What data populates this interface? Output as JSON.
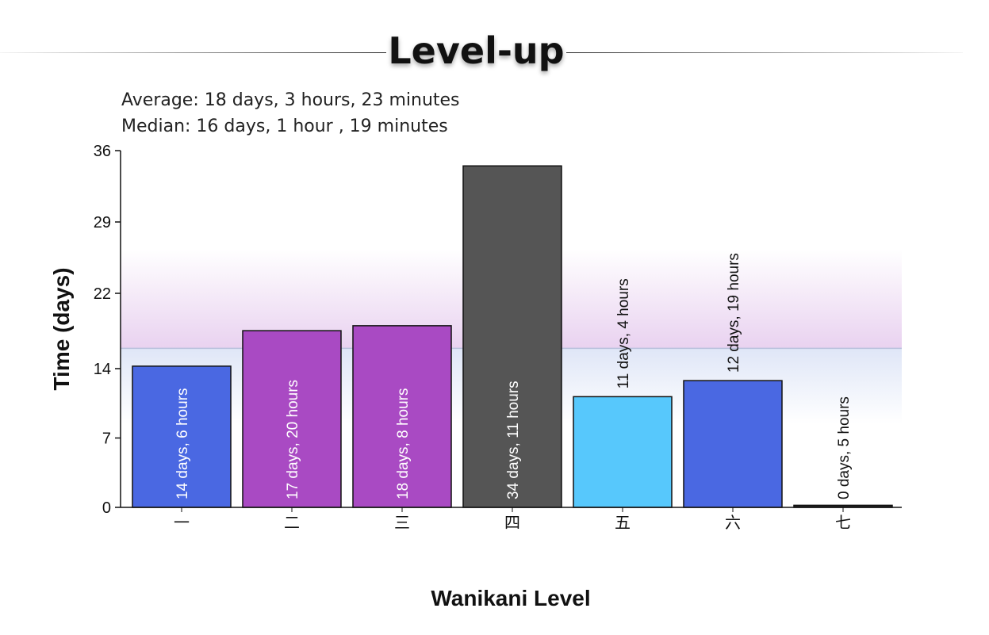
{
  "page": {
    "title": "Level-up",
    "stats": {
      "average": "Average: 18 days, 3 hours, 23 minutes",
      "median": "Median: 16 days, 1 hour , 19 minutes"
    }
  },
  "colors": {
    "blue": "#4a68e2",
    "purple": "#a94ac3",
    "dark": "#555555",
    "light_blue": "#57c8fc",
    "band_purple": "#e9d2f0",
    "band_blue": "#dfe6f7",
    "median_line": "#b8c0dc"
  },
  "chart_data": {
    "type": "bar",
    "xlabel": "Wanikani Level",
    "ylabel": "Time (days)",
    "ylim": [
      0,
      36
    ],
    "yticks": [
      "0",
      "7",
      "14",
      "22",
      "29",
      "36"
    ],
    "ytick_values": [
      0,
      7,
      14,
      21.6,
      28.8,
      36
    ],
    "median_value": 16.05,
    "categories": [
      "一",
      "二",
      "三",
      "四",
      "五",
      "六",
      "七"
    ],
    "values": [
      14.25,
      17.83,
      18.33,
      34.46,
      11.17,
      12.79,
      0.21
    ],
    "labels": [
      "14 days, 6 hours",
      "17 days, 20 hours",
      "18 days, 8 hours",
      "34 days, 11 hours",
      "11 days, 4 hours",
      "12 days, 19 hours",
      "0 days, 5 hours"
    ],
    "bar_colors": [
      "#4a68e2",
      "#a94ac3",
      "#a94ac3",
      "#555555",
      "#57c8fc",
      "#4a68e2",
      "#222222"
    ],
    "label_inside": [
      true,
      true,
      true,
      true,
      false,
      false,
      false
    ],
    "grid": false,
    "legend": "none"
  }
}
